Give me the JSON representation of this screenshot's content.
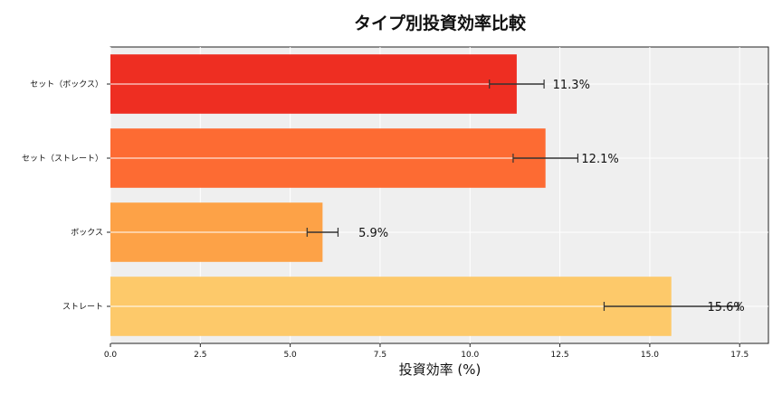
{
  "chart_data": {
    "type": "bar",
    "orientation": "horizontal",
    "title": "タイプ別投資効率比較",
    "xlabel": "投資効率 (%)",
    "ylabel": "",
    "categories": [
      "ストレート",
      "ボックス",
      "セット（ストレート）",
      "セット（ボックス）"
    ],
    "values": [
      15.6,
      5.9,
      12.1,
      11.3
    ],
    "errors": [
      1.87,
      0.43,
      0.9,
      0.76
    ],
    "data_labels": [
      "15.6%",
      "5.9%",
      "12.1%",
      "11.3%"
    ],
    "colors": [
      "#fdc96a",
      "#fda247",
      "#fd6b33",
      "#ee2e22"
    ],
    "xlim": [
      0,
      18.3
    ],
    "xticks": [
      0,
      2.5,
      5,
      7.5,
      10,
      12.5,
      15,
      17.5
    ],
    "xtick_labels": [
      "0.0",
      "2.5",
      "5.0",
      "7.5",
      "10.0",
      "12.5",
      "15.0",
      "17.5"
    ],
    "grid": true,
    "background": "#efefef"
  }
}
